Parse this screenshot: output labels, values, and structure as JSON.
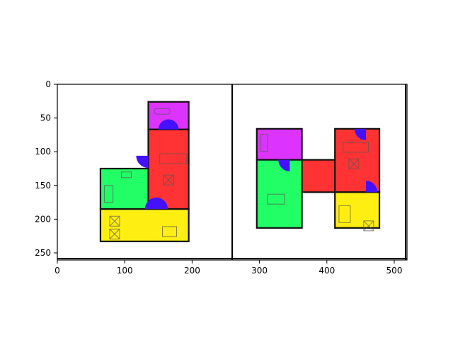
{
  "colors": {
    "bedroom": "#dd33ff",
    "living": "#ff3333",
    "kitchen": "#22ff66",
    "bath": "#ffee11",
    "door": "#4411ff",
    "wall": "#111111"
  },
  "axes": {
    "x_ticks": [
      "0",
      "100",
      "200",
      "300",
      "400",
      "500"
    ],
    "y_ticks": [
      "0",
      "50",
      "100",
      "150",
      "200",
      "250"
    ]
  },
  "plans": [
    {
      "name": "left-plan",
      "rooms": [
        {
          "type": "bedroom",
          "x": 135,
          "y": 26,
          "w": 60,
          "h": 41
        },
        {
          "type": "living",
          "x": 135,
          "y": 67,
          "w": 60,
          "h": 118
        },
        {
          "type": "kitchen",
          "x": 64,
          "y": 125,
          "w": 71,
          "h": 60
        },
        {
          "type": "bath",
          "x": 64,
          "y": 185,
          "w": 131,
          "h": 48
        }
      ],
      "doors": [
        {
          "cx": 165,
          "cy": 67,
          "r": 15,
          "start": 0,
          "end": 180
        },
        {
          "cx": 135,
          "cy": 106,
          "r": 18,
          "start": 180,
          "end": 270
        },
        {
          "cx": 147,
          "cy": 185,
          "r": 17,
          "start": 0,
          "end": 180
        }
      ]
    },
    {
      "name": "right-plan",
      "rooms": [
        {
          "type": "bedroom",
          "x": 296,
          "y": 66,
          "w": 67,
          "h": 46
        },
        {
          "type": "kitchen",
          "x": 296,
          "y": 112,
          "w": 67,
          "h": 101
        },
        {
          "type": "living",
          "x": 363,
          "y": 112,
          "w": 52,
          "h": 48
        },
        {
          "type": "living",
          "x": 412,
          "y": 66,
          "w": 66,
          "h": 94
        },
        {
          "type": "bath",
          "x": 412,
          "y": 160,
          "w": 66,
          "h": 53
        }
      ],
      "doors": [
        {
          "cx": 345,
          "cy": 112,
          "r": 17,
          "start": 180,
          "end": 270
        },
        {
          "cx": 458,
          "cy": 66,
          "r": 17,
          "start": 180,
          "end": 270
        },
        {
          "cx": 458,
          "cy": 160,
          "r": 17,
          "start": 0,
          "end": 90
        }
      ]
    }
  ]
}
